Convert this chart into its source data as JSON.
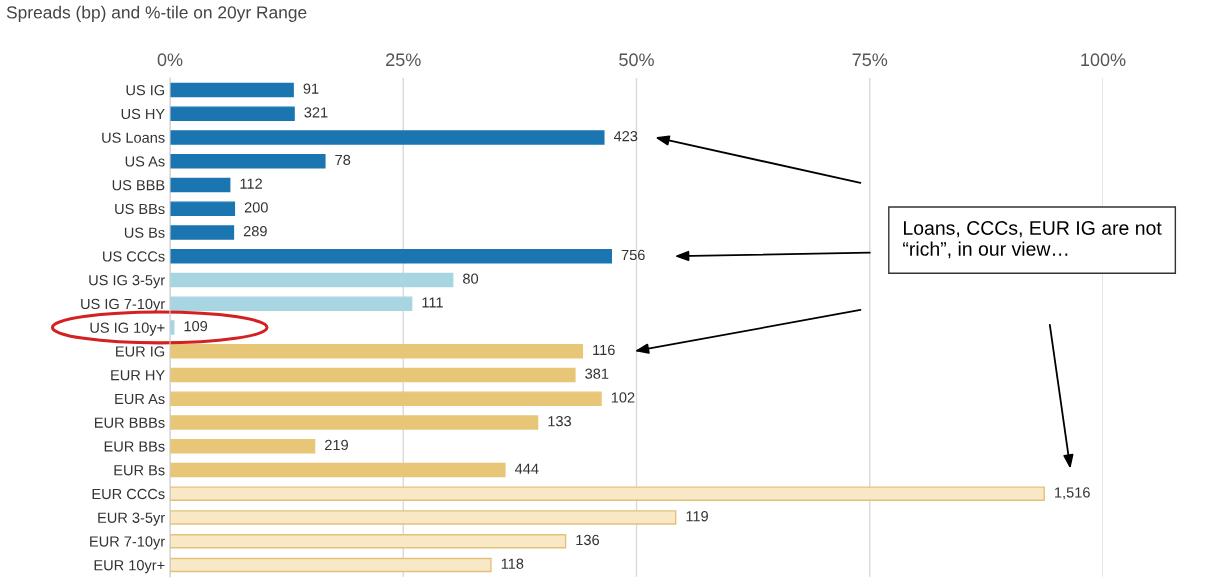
{
  "chart_data": {
    "type": "bar",
    "orientation": "horizontal",
    "title": "Spreads (bp) and %-tile on 20yr Range",
    "categories": [
      "US IG",
      "US HY",
      "US Loans",
      "US As",
      "US BBB",
      "US BBs",
      "US Bs",
      "US CCCs",
      "US IG 3-5yr",
      "US IG 7-10yr",
      "US IG 10y+",
      "EUR IG",
      "EUR HY",
      "EUR As",
      "EUR BBBs",
      "EUR BBs",
      "EUR Bs",
      "EUR CCCs",
      "EUR 3-5yr",
      "EUR 7-10yr",
      "EUR 10yr+"
    ],
    "values": [
      13.2,
      13.3,
      46.5,
      16.6,
      6.4,
      6.9,
      6.8,
      47.3,
      30.3,
      25.9,
      0.4,
      44.2,
      43.4,
      46.2,
      39.4,
      15.5,
      35.9,
      93.7,
      54.2,
      42.4,
      34.4
    ],
    "colors": [
      "#1a75b0",
      "#1a75b0",
      "#1a75b0",
      "#1a75b0",
      "#1a75b0",
      "#1a75b0",
      "#1a75b0",
      "#1a75b0",
      "#a8d5e2",
      "#a8d5e2",
      "#a8d5e2",
      "#e8c677",
      "#e8c677",
      "#e8c677",
      "#e8c677",
      "#e8c677",
      "#e8c677",
      "#f8e8c6",
      "#f8e8c6",
      "#f8e8c6",
      "#f8e8c6"
    ],
    "xlim": [
      0,
      100
    ],
    "xticks": [
      {
        "value": 0,
        "label": "0%"
      },
      {
        "value": 25,
        "label": "25%"
      },
      {
        "value": 50,
        "label": "50%"
      },
      {
        "value": 75,
        "label": "75%"
      },
      {
        "value": 100,
        "label": "100%"
      }
    ],
    "grid": "x",
    "annotations": [
      "Loans, CCCs, EUR IG are not “rich”, in our view…",
      {
        "text": "91",
        "x": 13.2,
        "y": "US IG"
      },
      {
        "text": "321",
        "x": 13.3,
        "y": "US HY"
      },
      {
        "text": "423",
        "x": 46.5,
        "y": "US Loans"
      },
      {
        "text": "78",
        "x": 16.6,
        "y": "US As"
      },
      {
        "text": "112",
        "x": 6.4,
        "y": "US BBB"
      },
      {
        "text": "200",
        "x": 6.9,
        "y": "US BBs"
      },
      {
        "text": "289",
        "x": 6.8,
        "y": "US Bs"
      },
      {
        "text": "756",
        "x": 47.3,
        "y": "US CCCs"
      },
      {
        "text": "80",
        "x": 30.3,
        "y": "US IG 3-5yr"
      },
      {
        "text": "111",
        "x": 25.9,
        "y": "US IG 7-10yr"
      },
      {
        "text": "109",
        "x": 0.4,
        "y": "US IG 10y+"
      },
      {
        "text": "116",
        "x": 44.2,
        "y": "EUR IG"
      },
      {
        "text": "381",
        "x": 43.4,
        "y": "EUR HY"
      },
      {
        "text": "102",
        "x": 46.2,
        "y": "EUR As"
      },
      {
        "text": "133",
        "x": 39.4,
        "y": "EUR BBBs"
      },
      {
        "text": "219",
        "x": 15.5,
        "y": "EUR BBs"
      },
      {
        "text": "444",
        "x": 35.9,
        "y": "EUR Bs"
      },
      {
        "text": "1,516",
        "x": 93.7,
        "y": "EUR CCCs"
      },
      {
        "text": "119",
        "x": 54.2,
        "y": "EUR 3-5yr"
      },
      {
        "text": "136",
        "x": 42.4,
        "y": "EUR 7-10yr"
      },
      {
        "text": "118",
        "x": 34.4,
        "y": "EUR 10yr+"
      }
    ]
  }
}
